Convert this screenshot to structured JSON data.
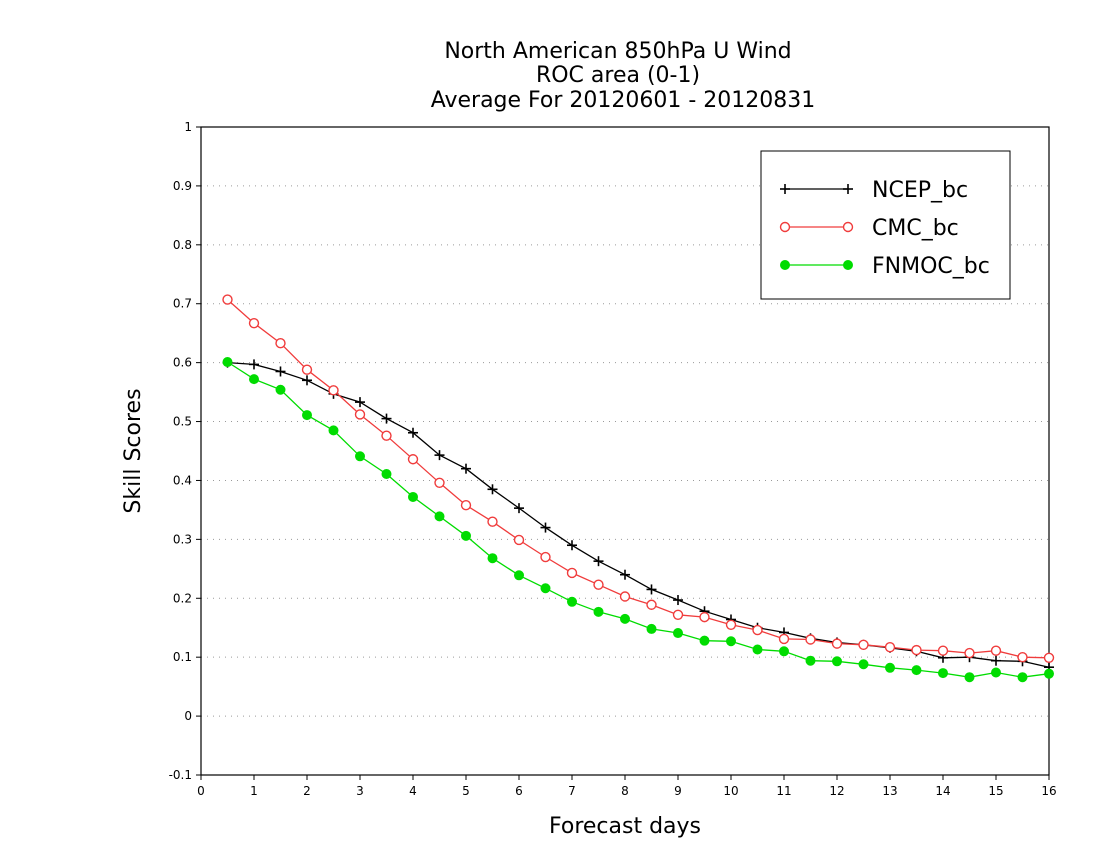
{
  "chart_data": {
    "type": "line",
    "title_lines": [
      "North American 850hPa U Wind",
      "ROC area (0-1)",
      "Average For 20120601 - 20120831"
    ],
    "xlabel": "Forecast days",
    "ylabel": "Skill Scores",
    "xlim": [
      0,
      16
    ],
    "ylim": [
      -0.1,
      1
    ],
    "xticks": [
      0,
      1,
      2,
      3,
      4,
      5,
      6,
      7,
      8,
      9,
      10,
      11,
      12,
      13,
      14,
      15,
      16
    ],
    "yticks": [
      -0.1,
      0,
      0.1,
      0.2,
      0.3,
      0.4,
      0.5,
      0.6,
      0.7,
      0.8,
      0.9,
      1
    ],
    "ytick_labels": [
      "-0.1",
      "0",
      "0.1",
      "0.2",
      "0.3",
      "0.4",
      "0.5",
      "0.6",
      "0.7",
      "0.8",
      "0.9",
      "1"
    ],
    "grid": "horizontal dotted",
    "legend_position": "top-right",
    "x": [
      0.5,
      1,
      1.5,
      2,
      2.5,
      3,
      3.5,
      4,
      4.5,
      5,
      5.5,
      6,
      6.5,
      7,
      7.5,
      8,
      8.5,
      9,
      9.5,
      10,
      10.5,
      11,
      11.5,
      12,
      12.5,
      13,
      13.5,
      14,
      14.5,
      15,
      15.5,
      16
    ],
    "series": [
      {
        "name": "NCEP_bc",
        "color": "#000000",
        "marker": "plus",
        "values": [
          0.6,
          0.597,
          0.585,
          0.57,
          0.547,
          0.533,
          0.505,
          0.481,
          0.443,
          0.42,
          0.385,
          0.353,
          0.32,
          0.29,
          0.263,
          0.24,
          0.215,
          0.197,
          0.178,
          0.164,
          0.15,
          0.142,
          0.132,
          0.125,
          0.121,
          0.116,
          0.11,
          0.099,
          0.1,
          0.094,
          0.093,
          0.083
        ]
      },
      {
        "name": "CMC_bc",
        "color": "#f03c3c",
        "marker": "open-circle",
        "values": [
          0.707,
          0.667,
          0.633,
          0.588,
          0.553,
          0.512,
          0.476,
          0.436,
          0.396,
          0.358,
          0.33,
          0.299,
          0.27,
          0.243,
          0.223,
          0.203,
          0.189,
          0.172,
          0.168,
          0.155,
          0.146,
          0.131,
          0.13,
          0.123,
          0.121,
          0.117,
          0.112,
          0.111,
          0.107,
          0.111,
          0.1,
          0.099
        ]
      },
      {
        "name": "FNMOC_bc",
        "color": "#00dc00",
        "marker": "filled-circle",
        "values": [
          0.601,
          0.572,
          0.554,
          0.511,
          0.485,
          0.441,
          0.411,
          0.372,
          0.339,
          0.306,
          0.268,
          0.239,
          0.217,
          0.194,
          0.177,
          0.165,
          0.148,
          0.141,
          0.128,
          0.127,
          0.113,
          0.11,
          0.094,
          0.093,
          0.088,
          0.082,
          0.078,
          0.073,
          0.066,
          0.074,
          0.066,
          0.072
        ]
      }
    ]
  }
}
